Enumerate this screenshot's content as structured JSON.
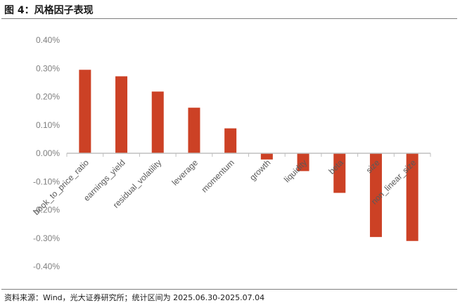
{
  "header": {
    "title": "图 4：风格因子表现"
  },
  "footer": {
    "source": "资料来源：Wind，光大证券研究所；统计区间为 2025.06.30-2025.07.04"
  },
  "colors": {
    "bar": "#cc4125",
    "axis": "#bfbfbf",
    "tick_text": "#7f7f7f"
  },
  "chart_data": {
    "type": "bar",
    "title": "风格因子表现",
    "xlabel": "",
    "ylabel": "",
    "ylim": [
      -0.4,
      0.4
    ],
    "y_ticks": [
      0.4,
      0.3,
      0.2,
      0.1,
      0.0,
      -0.1,
      -0.2,
      -0.3,
      -0.4
    ],
    "y_tick_labels": [
      "0.40%",
      "0.30%",
      "0.20%",
      "0.10%",
      "0.00%",
      "-0.10%",
      "-0.20%",
      "-0.30%",
      "-0.40%"
    ],
    "categories": [
      "book_to_price_ratio",
      "earnings_yield",
      "residual_volatility",
      "leverage",
      "momentum",
      "growth",
      "liquidity",
      "beta",
      "size",
      "non_linear_size"
    ],
    "values": [
      0.295,
      0.272,
      0.218,
      0.161,
      0.088,
      -0.022,
      -0.063,
      -0.14,
      -0.296,
      -0.31
    ],
    "unit": "%",
    "grid": false,
    "legend": "none"
  }
}
